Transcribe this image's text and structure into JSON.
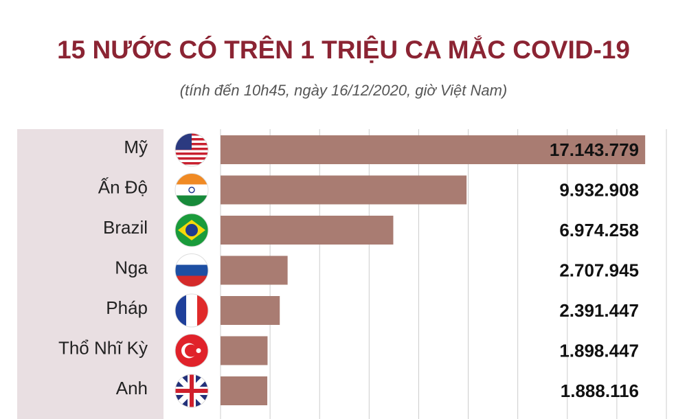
{
  "chart_data": {
    "type": "barh",
    "title": "15 NƯỚC CÓ TRÊN 1 TRIỆU CA MẮC COVID-19",
    "subtitle": "(tính đến 10h45, ngày 16/12/2020, giờ Việt Nam)",
    "categories": [
      "Mỹ",
      "Ấn Độ",
      "Brazil",
      "Nga",
      "Pháp",
      "Thổ Nhĩ Kỳ",
      "Anh"
    ],
    "values": [
      17143779,
      9932908,
      6974258,
      2707945,
      2391447,
      1898447,
      1888116
    ],
    "value_labels": [
      "17.143.779",
      "9.932.908",
      "6.974.258",
      "2.707.945",
      "2.391.447",
      "1.898.447",
      "1.888.116"
    ],
    "color": "#a97c72",
    "xlim": [
      0,
      18000000
    ],
    "xticks": [
      0,
      2000000,
      4000000,
      6000000,
      8000000,
      10000000,
      12000000,
      14000000,
      16000000,
      18000000
    ],
    "grid": true
  }
}
